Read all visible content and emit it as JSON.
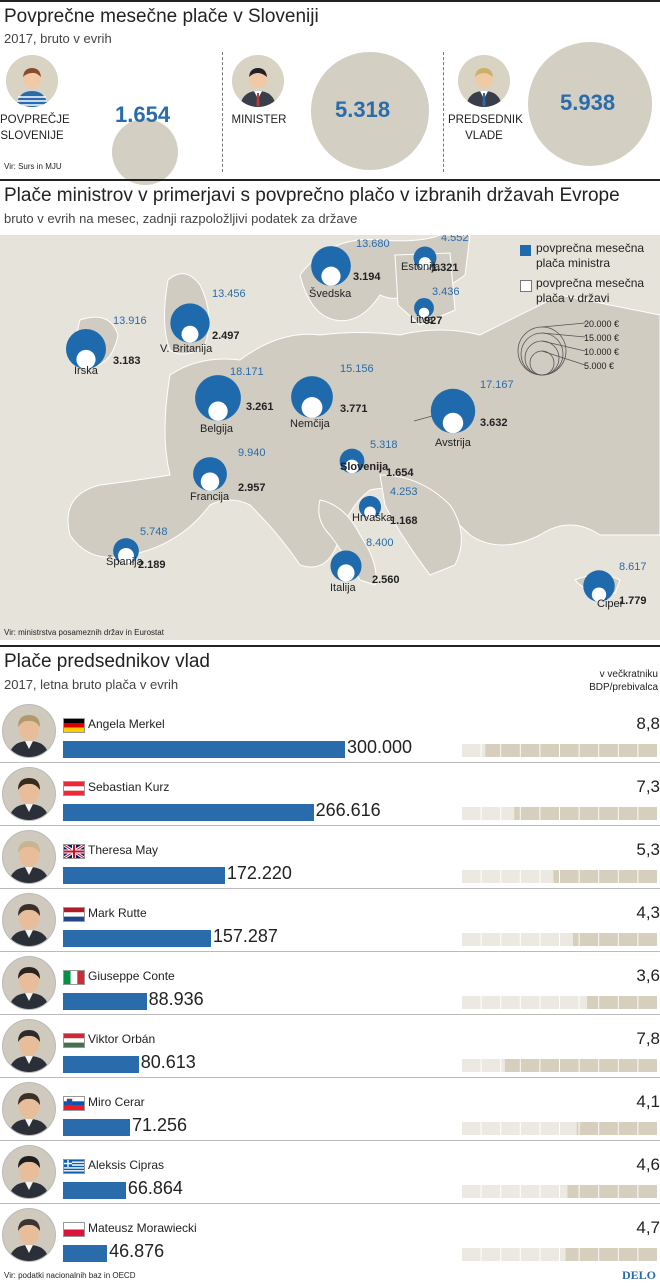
{
  "section1": {
    "title": "Povprečne mesečne plače v Sloveniji",
    "subtitle": "2017, bruto v evrih",
    "source": "Vir: Surs in MJU",
    "items": [
      {
        "label_lines": [
          "POVPREČJE",
          "SLOVENIJE"
        ],
        "value": "1.654",
        "value_num": 1654
      },
      {
        "label_lines": [
          "MINISTER"
        ],
        "value": "5.318",
        "value_num": 5318
      },
      {
        "label_lines": [
          "PREDSEDNIK",
          "VLADE"
        ],
        "value": "5.938",
        "value_num": 5938
      }
    ]
  },
  "section2": {
    "title": "Plače ministrov v primerjavi s povprečno plačo v izbranih državah Evrope",
    "subtitle": "bruto v evrih na mesec, zadnji razpoložljivi podatek za države",
    "source": "Vir: ministrstva posameznih držav in Eurostat",
    "legend": {
      "minister": "povprečna mesečna plača ministra",
      "minister_lines": [
        "povprečna mesečna",
        "plača ministra"
      ],
      "country": "povprečna mesečna plača v državi",
      "country_lines": [
        "povprečna mesečna",
        "plača v državi"
      ],
      "scale": [
        "20.000 €",
        "15.000 €",
        "10.000 €",
        "5.000 €"
      ]
    },
    "colors": {
      "minister": "#1f6aad",
      "country": "#ffffff",
      "land": "#d0ccc1",
      "sea": "#e6e3da"
    }
  },
  "chart_data": [
    {
      "type": "scatter",
      "title": "Plače ministrov v primerjavi s povprečno plačo v izbranih državah Evrope",
      "series": [
        {
          "name": "povprečna mesečna plača ministra",
          "values": [
            13680,
            4552,
            13916,
            13456,
            3436,
            18171,
            15156,
            17167,
            9940,
            5318,
            4253,
            5748,
            8400,
            8617
          ]
        },
        {
          "name": "povprečna mesečna plača v državi",
          "values": [
            3194,
            1321,
            3183,
            2497,
            927,
            3261,
            3771,
            3632,
            2957,
            1654,
            1168,
            2189,
            2560,
            1779
          ]
        }
      ],
      "countries": [
        {
          "name": "Švedska",
          "minister": "13.680",
          "avg": "3.194",
          "minister_num": 13680,
          "avg_num": 3194
        },
        {
          "name": "Estonija",
          "minister": "4.552",
          "avg": "1.321",
          "minister_num": 4552,
          "avg_num": 1321
        },
        {
          "name": "Irska",
          "minister": "13.916",
          "avg": "3.183",
          "minister_num": 13916,
          "avg_num": 3183
        },
        {
          "name": "V. Britanija",
          "minister": "13.456",
          "avg": "2.497",
          "minister_num": 13456,
          "avg_num": 2497
        },
        {
          "name": "Litva",
          "minister": "3.436",
          "avg": "927",
          "minister_num": 3436,
          "avg_num": 927
        },
        {
          "name": "Belgija",
          "minister": "18.171",
          "avg": "3.261",
          "minister_num": 18171,
          "avg_num": 3261
        },
        {
          "name": "Nemčija",
          "minister": "15.156",
          "avg": "3.771",
          "minister_num": 15156,
          "avg_num": 3771
        },
        {
          "name": "Avstrija",
          "minister": "17.167",
          "avg": "3.632",
          "minister_num": 17167,
          "avg_num": 3632
        },
        {
          "name": "Francija",
          "minister": "9.940",
          "avg": "2.957",
          "minister_num": 9940,
          "avg_num": 2957
        },
        {
          "name": "Slovenija",
          "minister": "5.318",
          "avg": "1.654",
          "minister_num": 5318,
          "avg_num": 1654
        },
        {
          "name": "Hrvaška",
          "minister": "4.253",
          "avg": "1.168",
          "minister_num": 4253,
          "avg_num": 1168
        },
        {
          "name": "Španija",
          "minister": "5.748",
          "avg": "2.189",
          "minister_num": 5748,
          "avg_num": 2189
        },
        {
          "name": "Italija",
          "minister": "8.400",
          "avg": "2.560",
          "minister_num": 8400,
          "avg_num": 2560
        },
        {
          "name": "Ciper",
          "minister": "8.617",
          "avg": "1.779",
          "minister_num": 8617,
          "avg_num": 1779
        }
      ]
    },
    {
      "type": "bar",
      "title": "Plače predsednikov vlad",
      "categories": [
        "Angela Merkel",
        "Sebastian Kurz",
        "Theresa May",
        "Mark Rutte",
        "Giuseppe Conte",
        "Viktor Orbán",
        "Miro Cerar",
        "Aleksis Cipras",
        "Mateusz Morawiecki"
      ],
      "values": [
        300000,
        266616,
        172220,
        157287,
        88936,
        80613,
        71256,
        66864,
        46876
      ],
      "ratio_values": [
        8.8,
        7.3,
        5.3,
        4.3,
        3.6,
        7.8,
        4.1,
        4.6,
        4.7
      ]
    }
  ],
  "section3": {
    "title": "Plače predsednikov vlad",
    "subtitle": "2017, letna bruto plača v evrih",
    "ratio_header": "v večkratniku BDP/prebivalca",
    "ratio_header_lines": [
      "v večkratniku",
      "BDP/prebivalca"
    ],
    "source": "Vir: podatki nacionalnih baz in OECD",
    "brand": "DELO",
    "leaders": [
      {
        "name": "Angela Merkel",
        "value": "300.000",
        "ratio": "8,8",
        "flag": "de"
      },
      {
        "name": "Sebastian Kurz",
        "value": "266.616",
        "ratio": "7,3",
        "flag": "at"
      },
      {
        "name": "Theresa May",
        "value": "172.220",
        "ratio": "5,3",
        "flag": "gb"
      },
      {
        "name": "Mark Rutte",
        "value": "157.287",
        "ratio": "4,3",
        "flag": "nl"
      },
      {
        "name": "Giuseppe Conte",
        "value": "88.936",
        "ratio": "3,6",
        "flag": "it"
      },
      {
        "name": "Viktor Orbán",
        "value": "80.613",
        "ratio": "7,8",
        "flag": "hu"
      },
      {
        "name": "Miro Cerar",
        "value": "71.256",
        "ratio": "4,1",
        "flag": "si"
      },
      {
        "name": "Aleksis Cipras",
        "value": "66.864",
        "ratio": "4,6",
        "flag": "gr"
      },
      {
        "name": "Mateusz Morawiecki",
        "value": "46.876",
        "ratio": "4,7",
        "flag": "pl"
      }
    ]
  }
}
